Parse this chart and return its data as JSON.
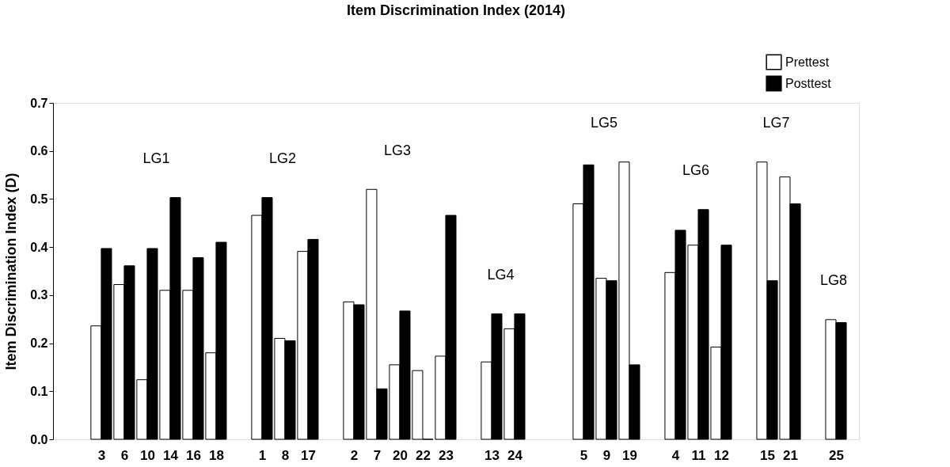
{
  "chart_data": {
    "type": "bar",
    "title": "Item Discrimination Index (2014)",
    "ylabel": "Item Discrimination Index (D)",
    "categories": [
      "3",
      "6",
      "10",
      "14",
      "16",
      "18",
      null,
      "1",
      "8",
      "17",
      null,
      "2",
      "7",
      "20",
      "22",
      "23",
      null,
      "13",
      "24",
      null,
      null,
      "5",
      "9",
      "19",
      null,
      "4",
      "11",
      "12",
      null,
      "15",
      "21",
      null,
      "25"
    ],
    "series": [
      {
        "name": "Prettest",
        "color": "#ffffff",
        "values": [
          0.236,
          0.322,
          0.124,
          0.31,
          0.31,
          0.18,
          null,
          0.466,
          0.21,
          0.391,
          null,
          0.286,
          0.52,
          0.155,
          0.143,
          0.173,
          null,
          0.161,
          0.23,
          null,
          null,
          0.49,
          0.335,
          0.577,
          null,
          0.347,
          0.404,
          0.192,
          null,
          0.577,
          0.546,
          null,
          0.249
        ]
      },
      {
        "name": "Posttest",
        "color": "#000000",
        "values": [
          0.397,
          0.361,
          0.397,
          0.503,
          0.378,
          0.41,
          null,
          0.503,
          0.205,
          0.416,
          null,
          0.28,
          0.105,
          0.267,
          0,
          0.466,
          null,
          0.261,
          0.261,
          null,
          null,
          0.571,
          0.33,
          0.155,
          null,
          0.435,
          0.478,
          0.404,
          null,
          0.33,
          0.49,
          null,
          0.243
        ]
      }
    ],
    "annotations": [
      "LG1",
      "LG2",
      "LG3",
      "LG4",
      "LG5",
      "LG6",
      "LG7",
      "LG8"
    ],
    "ylim": [
      0,
      0.7
    ],
    "yticks": [
      {
        "value": 0,
        "label": "0.0"
      },
      0.1,
      0.2,
      0.3,
      0.4,
      0.5,
      0.6,
      0.7
    ],
    "grid": false,
    "legend": "top right"
  }
}
